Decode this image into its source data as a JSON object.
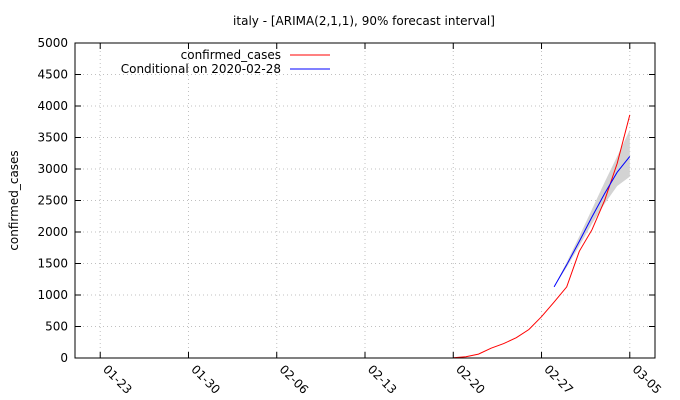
{
  "chart_data": {
    "type": "line",
    "title": "italy -  [ARIMA(2,1,1), 90% forecast interval]",
    "xlabel": "",
    "ylabel": "confirmed_cases",
    "x_tick_labels": [
      "01-23",
      "01-30",
      "02-06",
      "02-13",
      "02-20",
      "02-27",
      "03-05"
    ],
    "x_tick_days": [
      0,
      7,
      14,
      21,
      28,
      35,
      42
    ],
    "xlim_days": [
      -2,
      44
    ],
    "ylim": [
      0,
      5000
    ],
    "y_ticks": [
      0,
      500,
      1000,
      1500,
      2000,
      2500,
      3000,
      3500,
      4000,
      4500,
      5000
    ],
    "y_tick_labels": [
      "0",
      "500",
      "1000",
      "1500",
      "2000",
      "2500",
      "3000",
      "3500",
      "4000",
      "4500",
      "5000"
    ],
    "grid": true,
    "legend_position": "top-left",
    "series": [
      {
        "name": "confirmed_cases",
        "color": "#ff0000",
        "x_days": [
          28,
          29,
          30,
          31,
          32,
          33,
          34,
          35,
          36,
          37,
          38,
          39,
          40,
          41,
          42
        ],
        "values": [
          3,
          20,
          62,
          155,
          229,
          322,
          453,
          655,
          888,
          1128,
          1694,
          2036,
          2502,
          3089,
          3858
        ]
      },
      {
        "name": "Conditional on 2020-02-28",
        "color": "#0000ff",
        "x_days": [
          36,
          37,
          38,
          39,
          40,
          41,
          42
        ],
        "values": [
          1128,
          1480,
          1850,
          2240,
          2610,
          2950,
          3200
        ]
      }
    ],
    "forecast_interval": {
      "color": "#d3d3d3",
      "x_days": [
        36,
        37,
        38,
        39,
        40,
        41,
        42
      ],
      "lower": [
        1128,
        1440,
        1780,
        2130,
        2450,
        2730,
        2880
      ],
      "upper": [
        1128,
        1520,
        1930,
        2360,
        2790,
        3200,
        3620
      ]
    }
  }
}
